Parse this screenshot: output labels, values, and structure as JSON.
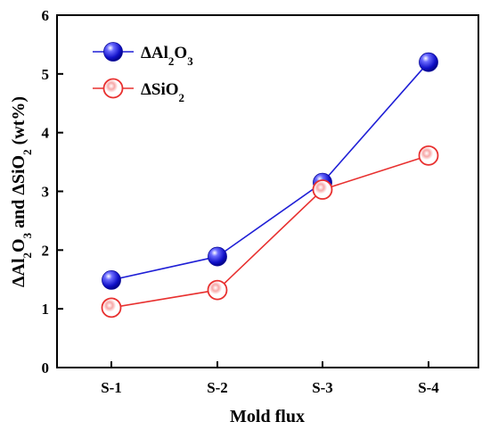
{
  "chart_data": {
    "type": "line",
    "categories": [
      "S-1",
      "S-2",
      "S-3",
      "S-4"
    ],
    "series": [
      {
        "name": "ΔAl2O3",
        "name_parts": [
          "ΔAl",
          "2",
          "O",
          "3"
        ],
        "values": [
          1.49,
          1.89,
          3.15,
          5.2
        ],
        "color": "#1f1fd6",
        "marker": "filled-sphere"
      },
      {
        "name": "ΔSiO2",
        "name_parts": [
          "ΔSiO",
          "2"
        ],
        "values": [
          1.02,
          1.32,
          3.03,
          3.61
        ],
        "color": "#e8302f",
        "marker": "open-circle"
      }
    ],
    "xlabel": "Mold flux",
    "ylabel": "ΔAl2O3 and ΔSiO2 (wt%)",
    "ylabel_parts": [
      "ΔAl",
      "2",
      "O",
      "3",
      " and ΔSiO",
      "2",
      " (wt%)"
    ],
    "ylim": [
      0,
      6
    ],
    "yticks": [
      "0",
      "1",
      "2",
      "3",
      "4",
      "5",
      "6"
    ],
    "grid": false,
    "legend_position": "top-left"
  }
}
